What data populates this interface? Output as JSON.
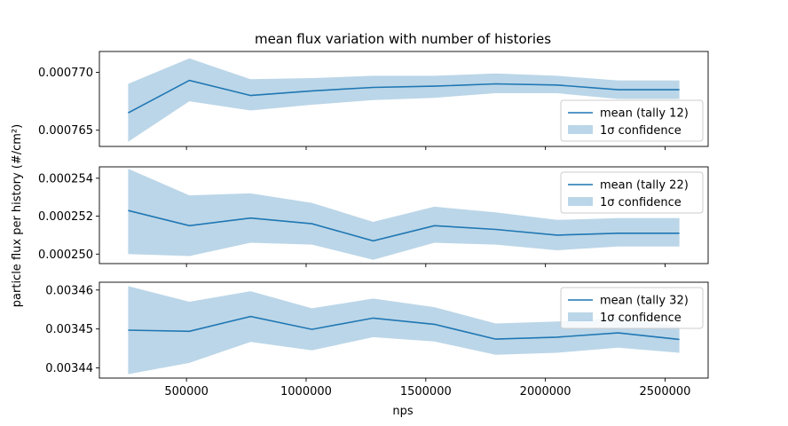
{
  "figure": {
    "title": "mean flux variation with number of histories",
    "xlabel": "nps",
    "ylabel": "particle flux per history (#/cm²)"
  },
  "colors": {
    "line": "#1f77b4",
    "band": "#1f77b4",
    "band_opacity": 0.3
  },
  "chart_data": [
    {
      "type": "line",
      "x": [
        256000,
        512000,
        768000,
        1024000,
        1280000,
        1536000,
        1792000,
        2048000,
        2304000,
        2560000
      ],
      "series": [
        {
          "name": "mean (tally 12)",
          "values": [
            0.0007665,
            0.0007693,
            0.000768,
            0.0007684,
            0.0007687,
            0.0007688,
            0.000769,
            0.0007689,
            0.0007685,
            0.0007685
          ]
        },
        {
          "name": "1σ confidence",
          "kind": "band",
          "lower": [
            0.000764,
            0.0007675,
            0.0007667,
            0.0007672,
            0.0007676,
            0.0007678,
            0.0007682,
            0.0007682,
            0.0007677,
            0.0007677
          ],
          "upper": [
            0.000769,
            0.0007712,
            0.0007694,
            0.0007695,
            0.0007697,
            0.0007697,
            0.0007699,
            0.0007697,
            0.0007693,
            0.0007693
          ]
        }
      ],
      "xlim": [
        136000,
        2680000
      ],
      "ylim": [
        0.0007636,
        0.0007718
      ],
      "yticks": [
        0.000765,
        0.00077
      ],
      "ytick_labels": [
        "0.000765",
        "0.000770"
      ],
      "legend_location": "lower-right"
    },
    {
      "type": "line",
      "x": [
        256000,
        512000,
        768000,
        1024000,
        1280000,
        1536000,
        1792000,
        2048000,
        2304000,
        2560000
      ],
      "series": [
        {
          "name": "mean (tally 22)",
          "values": [
            0.0002523,
            0.0002515,
            0.0002519,
            0.0002516,
            0.0002507,
            0.0002515,
            0.0002513,
            0.000251,
            0.0002511,
            0.0002511
          ],
          "xxx": null
        },
        {
          "name": "1σ confidence",
          "kind": "band",
          "lower": [
            0.00025,
            0.0002499,
            0.0002506,
            0.0002505,
            0.0002497,
            0.0002506,
            0.0002505,
            0.0002502,
            0.0002504,
            0.0002504
          ],
          "upper": [
            0.0002545,
            0.0002531,
            0.0002532,
            0.0002527,
            0.0002517,
            0.0002525,
            0.0002522,
            0.0002518,
            0.0002519,
            0.0002519
          ]
        }
      ],
      "xlim": [
        136000,
        2680000
      ],
      "ylim": [
        0.0002495,
        0.0002546
      ],
      "yticks": [
        0.00025,
        0.000252,
        0.000254
      ],
      "ytick_labels": [
        "0.000250",
        "0.000252",
        "0.000254"
      ],
      "legend_location": "upper-right"
    },
    {
      "type": "line",
      "x": [
        256000,
        512000,
        768000,
        1024000,
        1280000,
        1536000,
        1792000,
        2048000,
        2304000,
        2560000
      ],
      "series": [
        {
          "name": "mean (tally 32)",
          "values": [
            0.0034497,
            0.0034494,
            0.0034532,
            0.0034499,
            0.0034528,
            0.0034512,
            0.0034474,
            0.0034479,
            0.003449,
            0.0034473
          ]
        },
        {
          "name": "1σ confidence",
          "kind": "band",
          "lower": [
            0.0034384,
            0.0034413,
            0.0034467,
            0.0034445,
            0.0034479,
            0.0034468,
            0.0034434,
            0.0034439,
            0.0034452,
            0.0034439
          ],
          "upper": [
            0.003461,
            0.003457,
            0.0034597,
            0.0034553,
            0.0034578,
            0.0034556,
            0.0034514,
            0.0034519,
            0.0034528,
            0.0034507
          ]
        }
      ],
      "xlim": [
        136000,
        2680000
      ],
      "ylim": [
        0.0034374,
        0.003462
      ],
      "yticks": [
        0.00344,
        0.00345,
        0.00346
      ],
      "ytick_labels": [
        "0.00344",
        "0.00345",
        "0.00346"
      ],
      "legend_location": "upper-right"
    }
  ],
  "xaxis": {
    "ticks": [
      500000,
      1000000,
      1500000,
      2000000,
      2500000
    ],
    "tick_labels": [
      "500000",
      "1000000",
      "1500000",
      "2000000",
      "2500000"
    ]
  }
}
